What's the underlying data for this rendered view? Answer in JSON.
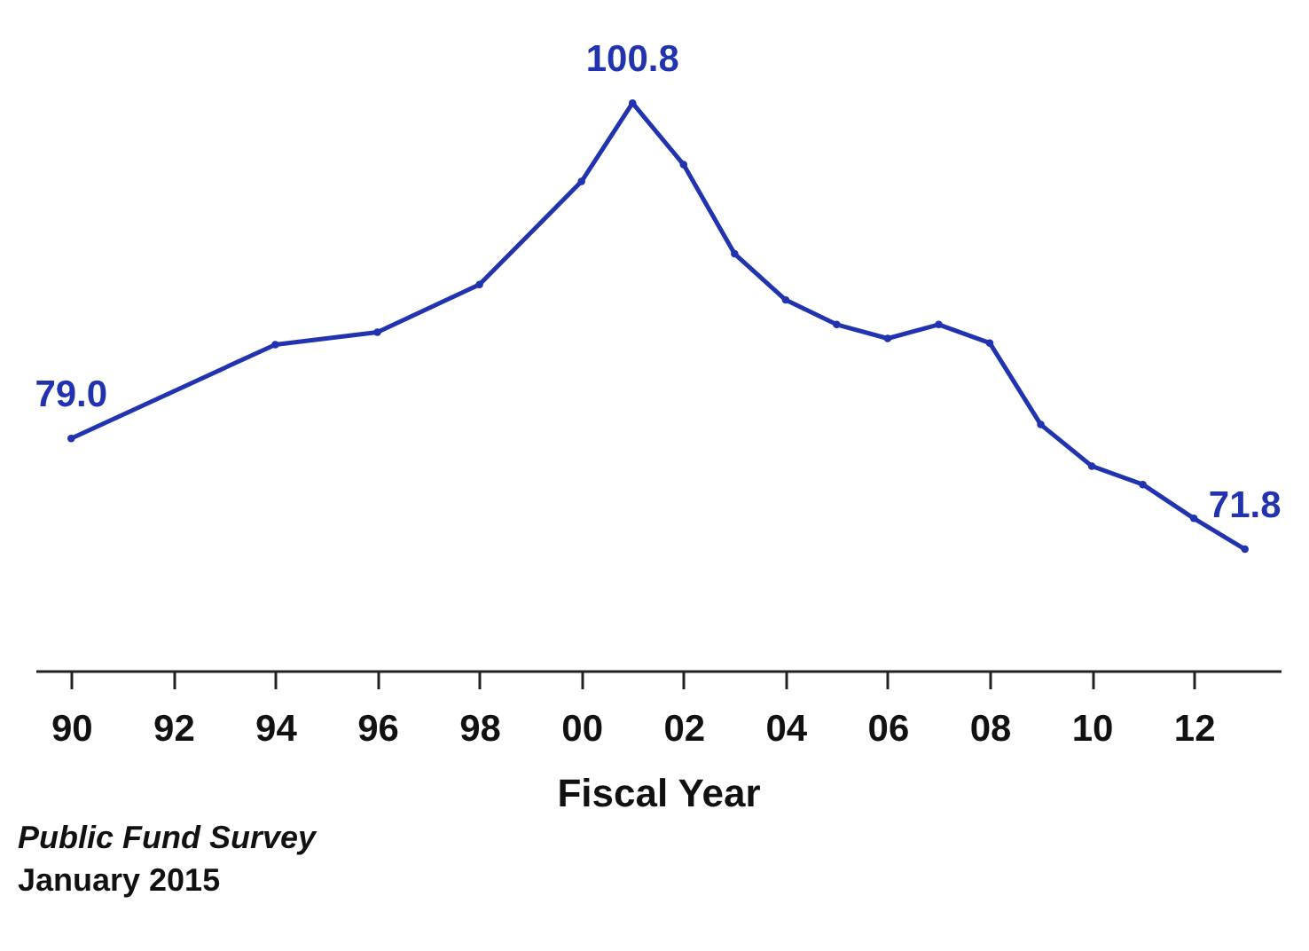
{
  "chart_data": {
    "type": "line",
    "xlabel": "Fiscal Year",
    "x": [
      1990,
      1994,
      1996,
      1998,
      2000,
      2001,
      2002,
      2003,
      2004,
      2005,
      2006,
      2007,
      2008,
      2009,
      2010,
      2011,
      2012,
      2013
    ],
    "series": [
      {
        "color": "#2233b0",
        "values": [
          79.0,
          85.1,
          85.9,
          89.0,
          95.7,
          100.8,
          96.8,
          91.0,
          88.0,
          86.4,
          85.5,
          86.4,
          85.2,
          79.9,
          77.2,
          76.0,
          73.8,
          71.8
        ],
        "value_labels": [
          "79.0",
          null,
          null,
          null,
          null,
          "100.8",
          null,
          null,
          null,
          null,
          null,
          null,
          null,
          null,
          null,
          null,
          null,
          "71.8"
        ]
      }
    ],
    "xlim": [
      1989.3,
      2013.7
    ],
    "xticks": [
      {
        "value": 1990,
        "label": "90"
      },
      {
        "value": 1992,
        "label": "92"
      },
      {
        "value": 1994,
        "label": "94"
      },
      {
        "value": 1996,
        "label": "96"
      },
      {
        "value": 1998,
        "label": "98"
      },
      {
        "value": 2000,
        "label": "00"
      },
      {
        "value": 2002,
        "label": "02"
      },
      {
        "value": 2004,
        "label": "04"
      },
      {
        "value": 2006,
        "label": "06"
      },
      {
        "value": 2008,
        "label": "08"
      },
      {
        "value": 2010,
        "label": "10"
      },
      {
        "value": 2012,
        "label": "12"
      }
    ],
    "ylim": [
      63.9,
      107.5
    ],
    "tick_labels": "x",
    "grid": false,
    "marker": "circle",
    "line_style": "solid",
    "annotations": [
      "Public Fund Survey",
      "January 2015"
    ]
  }
}
